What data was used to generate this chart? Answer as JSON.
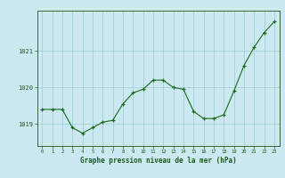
{
  "x": [
    0,
    1,
    2,
    3,
    4,
    5,
    6,
    7,
    8,
    9,
    10,
    11,
    12,
    13,
    14,
    15,
    16,
    17,
    18,
    19,
    20,
    21,
    22,
    23
  ],
  "y": [
    1019.4,
    1019.4,
    1019.4,
    1018.9,
    1018.75,
    1018.9,
    1019.05,
    1019.1,
    1019.55,
    1019.85,
    1019.95,
    1020.2,
    1020.2,
    1020.0,
    1019.95,
    1019.35,
    1019.15,
    1019.15,
    1019.25,
    1019.9,
    1020.6,
    1021.1,
    1021.5,
    1021.8
  ],
  "line_color": "#1a6b1a",
  "marker": "+",
  "marker_color": "#1a6b1a",
  "bg_color": "#cce8f0",
  "grid_color": "#99ccd8",
  "xlabel": "Graphe pression niveau de la mer (hPa)",
  "xlabel_color": "#1a5c1a",
  "tick_color": "#1a5c1a",
  "axis_color": "#336633",
  "yticks": [
    1019,
    1020,
    1021
  ],
  "ylim": [
    1018.4,
    1022.1
  ],
  "xlim": [
    -0.5,
    23.5
  ],
  "xticks": [
    0,
    1,
    2,
    3,
    4,
    5,
    6,
    7,
    8,
    9,
    10,
    11,
    12,
    13,
    14,
    15,
    16,
    17,
    18,
    19,
    20,
    21,
    22,
    23
  ],
  "figsize": [
    3.2,
    2.0
  ],
  "dpi": 100
}
